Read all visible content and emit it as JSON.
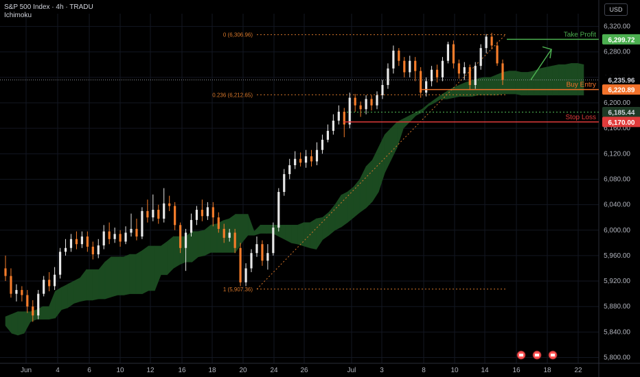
{
  "header": {
    "symbol": "S&P 500 Index · 4h · TRADU",
    "indicator": "Ichimoku"
  },
  "currency": "USD",
  "colors": {
    "up": "#e8e8e8",
    "down": "#f57c2a",
    "cloud_bull": "#1b4a20",
    "cloud_bear": "#5c1a16",
    "target": "#4caf50",
    "entry": "#f2722b",
    "stop": "#e03b3b",
    "fib": "#d9782b",
    "grid": "#131722",
    "axis_text": "#b2b5be"
  },
  "chart_data": {
    "type": "candlestick",
    "y_ticks": [
      "6,320.00",
      "6,280.00",
      "6,240.00",
      "6,200.00",
      "6,160.00",
      "6,120.00",
      "6,080.00",
      "6,040.00",
      "6,000.00",
      "5,960.00",
      "5,920.00",
      "5,880.00",
      "5,840.00",
      "5,800.00"
    ],
    "x_ticks": [
      "Jun",
      "4",
      "6",
      "10",
      "12",
      "16",
      "18",
      "20",
      "24",
      "26",
      "Jul",
      "3",
      "8",
      "10",
      "14",
      "16",
      "18",
      "22"
    ],
    "ylim": [
      5793,
      6340
    ],
    "levels": {
      "take_profit": {
        "label": "Take Profit",
        "value": "6,299.72"
      },
      "current": {
        "value": "6,235.96"
      },
      "buy_entry": {
        "label": "Buy Entry",
        "value": "6,220.89"
      },
      "support": {
        "value": "6,185.44"
      },
      "stop_loss": {
        "label": "Stop Loss",
        "value": "6,170.00"
      }
    },
    "fib": [
      {
        "label": "0 (6,306.96)",
        "value": 6306.96
      },
      {
        "label": "0.236 (6,212.65)",
        "value": 6212.65
      },
      {
        "label": "1 (5,907.36)",
        "value": 5907.36
      }
    ],
    "cloud_upper": [
      5864,
      5868,
      5872,
      5872,
      5872,
      5875,
      5880,
      5880,
      5904,
      5910,
      5915,
      5920,
      5925,
      5938,
      5938,
      5938,
      5950,
      5958,
      5958,
      5958,
      5962,
      5962,
      5968,
      5975,
      5975,
      5975,
      5982,
      5990,
      5990,
      5990,
      5998,
      5998,
      6000,
      6008,
      6010,
      6015,
      6018,
      6025,
      6025,
      6025,
      5998,
      6008,
      6008,
      6008,
      6008,
      6008,
      6008,
      6008,
      6012,
      6012,
      6018,
      6020,
      6028,
      6040,
      6055,
      6060,
      6068,
      6080,
      6100,
      6110,
      6130,
      6150,
      6160,
      6170,
      6175,
      6180,
      6185,
      6190,
      6198,
      6205,
      6212,
      6218,
      6224,
      6228,
      6232,
      6235,
      6238,
      6240,
      6240,
      6244,
      6248,
      6250,
      6250,
      6248,
      6248,
      6250,
      6254,
      6256,
      6258,
      6260,
      6260,
      6262,
      6262,
      6260
    ],
    "cloud_lower": [
      5850,
      5838,
      5835,
      5838,
      5856,
      5860,
      5860,
      5860,
      5862,
      5875,
      5878,
      5885,
      5888,
      5890,
      5890,
      5892,
      5892,
      5895,
      5898,
      5898,
      5900,
      5900,
      5900,
      5905,
      5905,
      5930,
      5930,
      5940,
      5946,
      5950,
      5950,
      5958,
      5960,
      5965,
      5965,
      5965,
      5965,
      5965,
      5980,
      5992,
      5992,
      5995,
      5995,
      5995,
      5990,
      5985,
      5980,
      5978,
      5975,
      5972,
      5970,
      5985,
      5992,
      6000,
      6005,
      6012,
      6020,
      6028,
      6035,
      6045,
      6060,
      6090,
      6110,
      6130,
      6160,
      6170,
      6180,
      6185,
      6195,
      6200,
      6206,
      6206,
      6208,
      6210,
      6210,
      6210,
      6212,
      6212,
      6212,
      6212,
      6214,
      6214,
      6214,
      6212,
      6212,
      6212,
      6212,
      6212,
      6212,
      6212,
      6212,
      6212,
      6212,
      6212
    ],
    "candles": [
      [
        5940,
        5928,
        5960,
        5920
      ],
      [
        5928,
        5900,
        5940,
        5894
      ],
      [
        5900,
        5906,
        5915,
        5888
      ],
      [
        5906,
        5898,
        5912,
        5888
      ],
      [
        5898,
        5880,
        5906,
        5870
      ],
      [
        5880,
        5866,
        5890,
        5856
      ],
      [
        5866,
        5900,
        5906,
        5860
      ],
      [
        5900,
        5922,
        5928,
        5896
      ],
      [
        5922,
        5912,
        5934,
        5904
      ],
      [
        5912,
        5930,
        5942,
        5906
      ],
      [
        5930,
        5966,
        5972,
        5924
      ],
      [
        5966,
        5972,
        5986,
        5960
      ],
      [
        5972,
        5986,
        5994,
        5966
      ],
      [
        5986,
        5978,
        5998,
        5970
      ],
      [
        5978,
        5990,
        5998,
        5972
      ],
      [
        5990,
        5974,
        5998,
        5966
      ],
      [
        5974,
        5962,
        5982,
        5954
      ],
      [
        5962,
        5976,
        5986,
        5956
      ],
      [
        5976,
        5998,
        6008,
        5970
      ],
      [
        5998,
        5986,
        6012,
        5978
      ],
      [
        5986,
        5994,
        6004,
        5980
      ],
      [
        5994,
        5982,
        6000,
        5974
      ],
      [
        5982,
        5996,
        6006,
        5978
      ],
      [
        5996,
        6002,
        6026,
        5990
      ],
      [
        6002,
        5990,
        6018,
        5984
      ],
      [
        5990,
        6030,
        6036,
        5986
      ],
      [
        6030,
        6020,
        6048,
        6012
      ],
      [
        6020,
        6032,
        6056,
        6014
      ],
      [
        6032,
        6018,
        6040,
        6010
      ],
      [
        6018,
        6042,
        6066,
        6012
      ],
      [
        6042,
        6038,
        6054,
        6030
      ],
      [
        6038,
        6008,
        6044,
        6000
      ],
      [
        6008,
        5972,
        6012,
        5964
      ],
      [
        5972,
        5996,
        6002,
        5936
      ],
      [
        5996,
        6016,
        6026,
        5990
      ],
      [
        6016,
        6032,
        6038,
        6008
      ],
      [
        6032,
        6022,
        6048,
        6014
      ],
      [
        6022,
        6036,
        6044,
        6016
      ],
      [
        6036,
        6020,
        6044,
        6006
      ],
      [
        6020,
        6002,
        6028,
        5996
      ],
      [
        6002,
        5988,
        6010,
        5980
      ],
      [
        5988,
        5996,
        6002,
        5982
      ],
      [
        5996,
        5972,
        6002,
        5964
      ],
      [
        5972,
        5918,
        5980,
        5912
      ],
      [
        5918,
        5940,
        5948,
        5912
      ],
      [
        5940,
        5964,
        5970,
        5934
      ],
      [
        5964,
        5978,
        5990,
        5958
      ],
      [
        5978,
        5952,
        5984,
        5944
      ],
      [
        5952,
        5964,
        5978,
        5938
      ],
      [
        5964,
        6004,
        6012,
        5960
      ],
      [
        6004,
        6060,
        6066,
        5998
      ],
      [
        6060,
        6088,
        6096,
        6054
      ],
      [
        6088,
        6102,
        6112,
        6080
      ],
      [
        6102,
        6112,
        6124,
        6096
      ],
      [
        6112,
        6106,
        6122,
        6100
      ],
      [
        6106,
        6116,
        6126,
        6098
      ],
      [
        6116,
        6108,
        6126,
        6100
      ],
      [
        6108,
        6126,
        6138,
        6102
      ],
      [
        6126,
        6142,
        6150,
        6120
      ],
      [
        6142,
        6156,
        6166,
        6138
      ],
      [
        6156,
        6172,
        6182,
        6150
      ],
      [
        6172,
        6186,
        6196,
        6166
      ],
      [
        6186,
        6166,
        6192,
        6146
      ],
      [
        6166,
        6208,
        6216,
        6160
      ],
      [
        6208,
        6196,
        6214,
        6186
      ],
      [
        6196,
        6190,
        6202,
        6178
      ],
      [
        6190,
        6206,
        6212,
        6182
      ],
      [
        6206,
        6196,
        6212,
        6188
      ],
      [
        6196,
        6212,
        6218,
        6190
      ],
      [
        6212,
        6228,
        6236,
        6206
      ],
      [
        6228,
        6254,
        6262,
        6222
      ],
      [
        6254,
        6282,
        6290,
        6246
      ],
      [
        6282,
        6266,
        6286,
        6258
      ],
      [
        6266,
        6248,
        6272,
        6240
      ],
      [
        6248,
        6266,
        6274,
        6240
      ],
      [
        6266,
        6250,
        6272,
        6234
      ],
      [
        6250,
        6216,
        6256,
        6208
      ],
      [
        6216,
        6234,
        6240,
        6210
      ],
      [
        6234,
        6252,
        6258,
        6226
      ],
      [
        6252,
        6240,
        6260,
        6232
      ],
      [
        6240,
        6266,
        6272,
        6234
      ],
      [
        6266,
        6292,
        6296,
        6262
      ],
      [
        6292,
        6262,
        6298,
        6254
      ],
      [
        6262,
        6246,
        6268,
        6238
      ],
      [
        6246,
        6256,
        6264,
        6236
      ],
      [
        6256,
        6228,
        6260,
        6220
      ],
      [
        6228,
        6258,
        6264,
        6222
      ],
      [
        6258,
        6286,
        6292,
        6252
      ],
      [
        6286,
        6304,
        6308,
        6278
      ],
      [
        6304,
        6290,
        6310,
        6284
      ],
      [
        6290,
        6262,
        6296,
        6258
      ],
      [
        6262,
        6236,
        6268,
        6228
      ]
    ]
  },
  "toolbar_icons": [
    "flag-icon",
    "flag-icon",
    "flag-icon"
  ]
}
